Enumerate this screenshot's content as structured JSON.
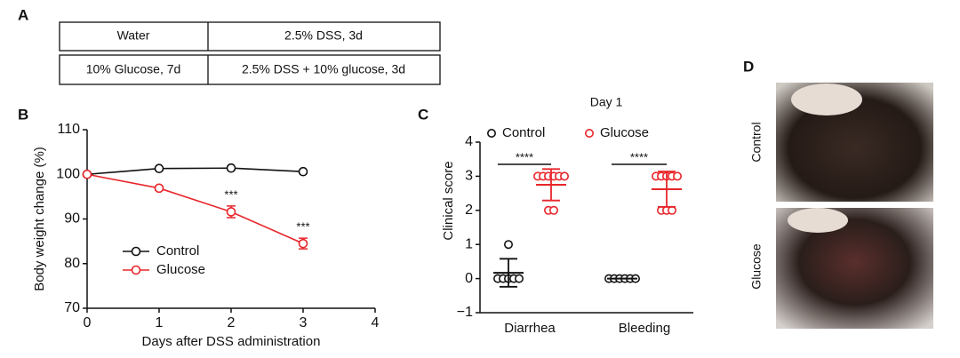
{
  "panels": {
    "a": "A",
    "b": "B",
    "c": "C",
    "d": "D"
  },
  "table": {
    "rows": [
      [
        "Water",
        "2.5% DSS, 3d"
      ],
      [
        "10% Glucose, 7d",
        "2.5% DSS + 10% glucose, 3d"
      ]
    ]
  },
  "chart_data": [
    {
      "type": "line",
      "x_label": "Days after DSS administration",
      "y_label": "Body weight change (%)",
      "x": [
        0,
        1,
        2,
        3
      ],
      "xlim": [
        0,
        4
      ],
      "xticks": [
        0,
        1,
        2,
        3,
        4
      ],
      "ylim": [
        70,
        110
      ],
      "yticks": [
        70,
        80,
        90,
        100,
        110
      ],
      "series": [
        {
          "name": "Control",
          "color": "#111111",
          "values": [
            100,
            101.3,
            101.4,
            100.6
          ]
        },
        {
          "name": "Glucose",
          "color": "#e8262b",
          "values": [
            100,
            96.9,
            91.6,
            84.5
          ],
          "errors": [
            0,
            0.4,
            1.3,
            1.2
          ]
        }
      ],
      "annotations": [
        {
          "text": "***",
          "x": 2
        },
        {
          "text": "***",
          "x": 3
        }
      ],
      "legend": "lower-left"
    },
    {
      "type": "dot",
      "title": "Day 1",
      "y_label": "Clinical score",
      "categories": [
        "Diarrhea",
        "Bleeding"
      ],
      "ylim": [
        -1,
        4
      ],
      "yticks": [
        {
          "value": -1,
          "label": "−1"
        },
        0,
        1,
        2,
        3,
        4
      ],
      "series": [
        {
          "name": "Control",
          "color": "#111111",
          "values": [
            [
              1,
              0,
              0,
              0,
              0,
              0
            ],
            [
              0,
              0,
              0,
              0,
              0,
              0
            ]
          ],
          "means": [
            0.17,
            0
          ],
          "errors": [
            0.41,
            0
          ]
        },
        {
          "name": "Glucose",
          "color": "#e8262b",
          "values": [
            [
              3,
              3,
              3,
              3,
              3,
              3,
              2,
              2
            ],
            [
              3,
              3,
              3,
              3,
              3,
              2,
              2,
              2
            ]
          ],
          "means": [
            2.75,
            2.62
          ],
          "errors": [
            0.46,
            0.52
          ]
        }
      ],
      "annotations": [
        "****",
        "****"
      ],
      "legend": "top"
    }
  ],
  "photos": {
    "labels": [
      "Control",
      "Glucose"
    ]
  }
}
